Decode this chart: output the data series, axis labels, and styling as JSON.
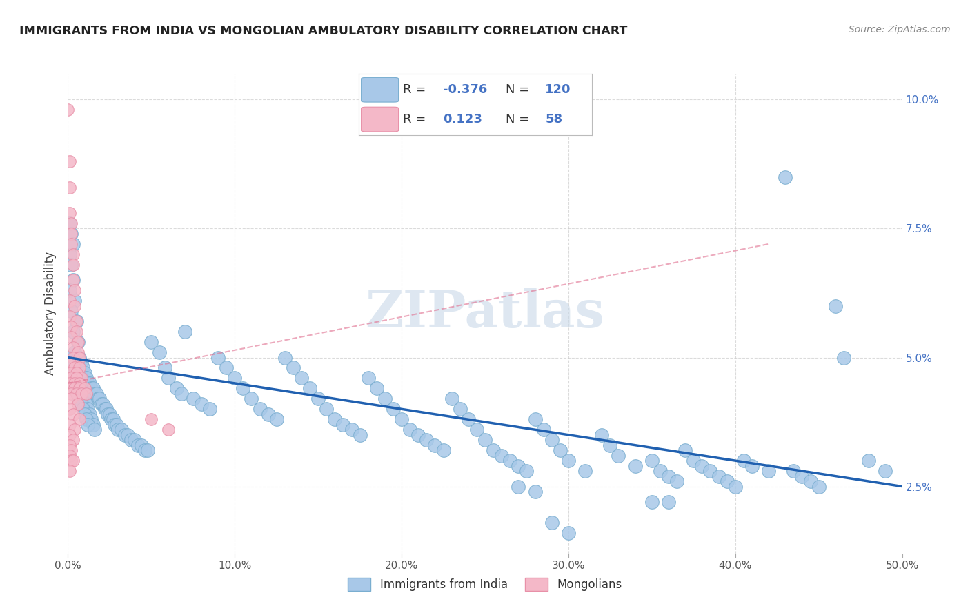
{
  "title": "IMMIGRANTS FROM INDIA VS MONGOLIAN AMBULATORY DISABILITY CORRELATION CHART",
  "source": "Source: ZipAtlas.com",
  "ylabel_label": "Ambulatory Disability",
  "legend_label1": "Immigrants from India",
  "legend_label2": "Mongolians",
  "r1": "-0.376",
  "n1": "120",
  "r2": "0.123",
  "n2": "58",
  "watermark": "ZIPatlas",
  "blue_color": "#a8c8e8",
  "blue_color_edge": "#7aaed0",
  "pink_color": "#f4b8c8",
  "pink_color_edge": "#e890a8",
  "blue_line_color": "#2060b0",
  "pink_line_color": "#e07090",
  "blue_scatter": [
    [
      0.001,
      0.076
    ],
    [
      0.002,
      0.074
    ],
    [
      0.003,
      0.072
    ],
    [
      0.001,
      0.07
    ],
    [
      0.002,
      0.068
    ],
    [
      0.003,
      0.065
    ],
    [
      0.001,
      0.063
    ],
    [
      0.004,
      0.061
    ],
    [
      0.002,
      0.059
    ],
    [
      0.005,
      0.057
    ],
    [
      0.003,
      0.055
    ],
    [
      0.006,
      0.053
    ],
    [
      0.004,
      0.051
    ],
    [
      0.001,
      0.05
    ],
    [
      0.007,
      0.05
    ],
    [
      0.008,
      0.049
    ],
    [
      0.005,
      0.049
    ],
    [
      0.002,
      0.048
    ],
    [
      0.009,
      0.048
    ],
    [
      0.006,
      0.047
    ],
    [
      0.01,
      0.047
    ],
    [
      0.003,
      0.046
    ],
    [
      0.011,
      0.046
    ],
    [
      0.007,
      0.046
    ],
    [
      0.012,
      0.045
    ],
    [
      0.004,
      0.045
    ],
    [
      0.013,
      0.045
    ],
    [
      0.008,
      0.044
    ],
    [
      0.014,
      0.044
    ],
    [
      0.005,
      0.044
    ],
    [
      0.015,
      0.044
    ],
    [
      0.009,
      0.043
    ],
    [
      0.016,
      0.043
    ],
    [
      0.006,
      0.043
    ],
    [
      0.017,
      0.043
    ],
    [
      0.01,
      0.042
    ],
    [
      0.018,
      0.042
    ],
    [
      0.007,
      0.042
    ],
    [
      0.019,
      0.042
    ],
    [
      0.011,
      0.041
    ],
    [
      0.02,
      0.041
    ],
    [
      0.008,
      0.041
    ],
    [
      0.021,
      0.041
    ],
    [
      0.012,
      0.04
    ],
    [
      0.022,
      0.04
    ],
    [
      0.009,
      0.04
    ],
    [
      0.023,
      0.04
    ],
    [
      0.013,
      0.039
    ],
    [
      0.024,
      0.039
    ],
    [
      0.01,
      0.039
    ],
    [
      0.025,
      0.039
    ],
    [
      0.014,
      0.038
    ],
    [
      0.026,
      0.038
    ],
    [
      0.011,
      0.038
    ],
    [
      0.027,
      0.038
    ],
    [
      0.015,
      0.037
    ],
    [
      0.028,
      0.037
    ],
    [
      0.012,
      0.037
    ],
    [
      0.029,
      0.037
    ],
    [
      0.016,
      0.036
    ],
    [
      0.03,
      0.036
    ],
    [
      0.032,
      0.036
    ],
    [
      0.034,
      0.035
    ],
    [
      0.036,
      0.035
    ],
    [
      0.038,
      0.034
    ],
    [
      0.04,
      0.034
    ],
    [
      0.042,
      0.033
    ],
    [
      0.044,
      0.033
    ],
    [
      0.046,
      0.032
    ],
    [
      0.048,
      0.032
    ],
    [
      0.05,
      0.053
    ],
    [
      0.055,
      0.051
    ],
    [
      0.058,
      0.048
    ],
    [
      0.06,
      0.046
    ],
    [
      0.065,
      0.044
    ],
    [
      0.068,
      0.043
    ],
    [
      0.07,
      0.055
    ],
    [
      0.075,
      0.042
    ],
    [
      0.08,
      0.041
    ],
    [
      0.085,
      0.04
    ],
    [
      0.09,
      0.05
    ],
    [
      0.095,
      0.048
    ],
    [
      0.1,
      0.046
    ],
    [
      0.105,
      0.044
    ],
    [
      0.11,
      0.042
    ],
    [
      0.115,
      0.04
    ],
    [
      0.12,
      0.039
    ],
    [
      0.125,
      0.038
    ],
    [
      0.13,
      0.05
    ],
    [
      0.135,
      0.048
    ],
    [
      0.14,
      0.046
    ],
    [
      0.145,
      0.044
    ],
    [
      0.15,
      0.042
    ],
    [
      0.155,
      0.04
    ],
    [
      0.16,
      0.038
    ],
    [
      0.165,
      0.037
    ],
    [
      0.17,
      0.036
    ],
    [
      0.175,
      0.035
    ],
    [
      0.18,
      0.046
    ],
    [
      0.185,
      0.044
    ],
    [
      0.19,
      0.042
    ],
    [
      0.195,
      0.04
    ],
    [
      0.2,
      0.038
    ],
    [
      0.205,
      0.036
    ],
    [
      0.21,
      0.035
    ],
    [
      0.215,
      0.034
    ],
    [
      0.22,
      0.033
    ],
    [
      0.225,
      0.032
    ],
    [
      0.23,
      0.042
    ],
    [
      0.235,
      0.04
    ],
    [
      0.24,
      0.038
    ],
    [
      0.245,
      0.036
    ],
    [
      0.25,
      0.034
    ],
    [
      0.255,
      0.032
    ],
    [
      0.26,
      0.031
    ],
    [
      0.265,
      0.03
    ],
    [
      0.27,
      0.029
    ],
    [
      0.275,
      0.028
    ],
    [
      0.28,
      0.038
    ],
    [
      0.285,
      0.036
    ],
    [
      0.29,
      0.034
    ],
    [
      0.295,
      0.032
    ],
    [
      0.3,
      0.03
    ],
    [
      0.31,
      0.028
    ],
    [
      0.32,
      0.035
    ],
    [
      0.325,
      0.033
    ],
    [
      0.33,
      0.031
    ],
    [
      0.34,
      0.029
    ],
    [
      0.35,
      0.03
    ],
    [
      0.355,
      0.028
    ],
    [
      0.36,
      0.027
    ],
    [
      0.365,
      0.026
    ],
    [
      0.37,
      0.032
    ],
    [
      0.375,
      0.03
    ],
    [
      0.38,
      0.029
    ],
    [
      0.385,
      0.028
    ],
    [
      0.39,
      0.027
    ],
    [
      0.395,
      0.026
    ],
    [
      0.4,
      0.025
    ],
    [
      0.405,
      0.03
    ],
    [
      0.41,
      0.029
    ],
    [
      0.42,
      0.028
    ],
    [
      0.43,
      0.085
    ],
    [
      0.435,
      0.028
    ],
    [
      0.44,
      0.027
    ],
    [
      0.445,
      0.026
    ],
    [
      0.45,
      0.025
    ],
    [
      0.46,
      0.06
    ],
    [
      0.465,
      0.05
    ],
    [
      0.48,
      0.03
    ],
    [
      0.49,
      0.028
    ],
    [
      0.35,
      0.022
    ],
    [
      0.36,
      0.022
    ],
    [
      0.29,
      0.018
    ],
    [
      0.3,
      0.016
    ],
    [
      0.27,
      0.025
    ],
    [
      0.28,
      0.024
    ]
  ],
  "pink_scatter": [
    [
      0.0,
      0.098
    ],
    [
      0.001,
      0.088
    ],
    [
      0.001,
      0.083
    ],
    [
      0.001,
      0.078
    ],
    [
      0.002,
      0.076
    ],
    [
      0.002,
      0.074
    ],
    [
      0.002,
      0.072
    ],
    [
      0.003,
      0.07
    ],
    [
      0.003,
      0.068
    ],
    [
      0.003,
      0.065
    ],
    [
      0.004,
      0.063
    ],
    [
      0.001,
      0.061
    ],
    [
      0.004,
      0.06
    ],
    [
      0.001,
      0.058
    ],
    [
      0.005,
      0.057
    ],
    [
      0.002,
      0.056
    ],
    [
      0.005,
      0.055
    ],
    [
      0.002,
      0.054
    ],
    [
      0.006,
      0.053
    ],
    [
      0.003,
      0.052
    ],
    [
      0.006,
      0.051
    ],
    [
      0.003,
      0.05
    ],
    [
      0.007,
      0.05
    ],
    [
      0.001,
      0.049
    ],
    [
      0.004,
      0.048
    ],
    [
      0.007,
      0.048
    ],
    [
      0.002,
      0.047
    ],
    [
      0.005,
      0.047
    ],
    [
      0.008,
      0.046
    ],
    [
      0.002,
      0.046
    ],
    [
      0.005,
      0.046
    ],
    [
      0.001,
      0.045
    ],
    [
      0.004,
      0.045
    ],
    [
      0.007,
      0.045
    ],
    [
      0.001,
      0.044
    ],
    [
      0.004,
      0.044
    ],
    [
      0.007,
      0.044
    ],
    [
      0.01,
      0.044
    ],
    [
      0.002,
      0.043
    ],
    [
      0.005,
      0.043
    ],
    [
      0.008,
      0.043
    ],
    [
      0.011,
      0.043
    ],
    [
      0.002,
      0.042
    ],
    [
      0.006,
      0.041
    ],
    [
      0.001,
      0.04
    ],
    [
      0.003,
      0.039
    ],
    [
      0.007,
      0.038
    ],
    [
      0.001,
      0.037
    ],
    [
      0.004,
      0.036
    ],
    [
      0.001,
      0.035
    ],
    [
      0.003,
      0.034
    ],
    [
      0.001,
      0.033
    ],
    [
      0.002,
      0.032
    ],
    [
      0.05,
      0.038
    ],
    [
      0.06,
      0.036
    ],
    [
      0.001,
      0.031
    ],
    [
      0.002,
      0.03
    ],
    [
      0.003,
      0.03
    ],
    [
      0.001,
      0.028
    ]
  ],
  "xlim": [
    0.0,
    0.5
  ],
  "ylim": [
    0.012,
    0.105
  ],
  "xticks": [
    0.0,
    0.1,
    0.2,
    0.3,
    0.4,
    0.5
  ],
  "yticks": [
    0.025,
    0.05,
    0.075,
    0.1
  ],
  "ytick_labels_right": [
    "2.5%",
    "5.0%",
    "7.5%",
    "10.0%"
  ],
  "xtick_labels": [
    "0.0%",
    "10.0%",
    "20.0%",
    "30.0%",
    "40.0%",
    "50.0%"
  ],
  "background_color": "#ffffff",
  "grid_color": "#cccccc",
  "blue_line_x": [
    0.0,
    0.5
  ],
  "blue_line_y": [
    0.05,
    0.025
  ],
  "pink_line_x": [
    0.0,
    0.42
  ],
  "pink_line_y": [
    0.045,
    0.072
  ]
}
